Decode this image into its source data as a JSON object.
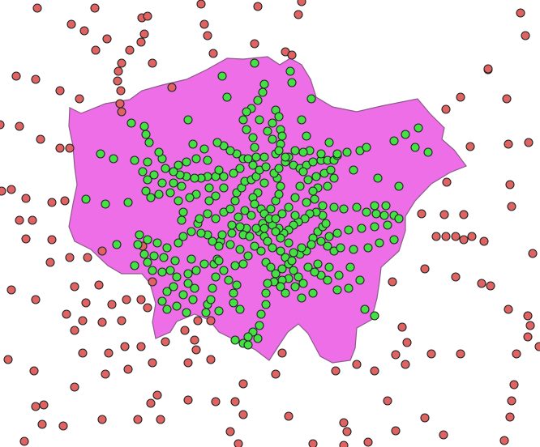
{
  "map": {
    "background_color": "#ffffff",
    "region": {
      "name": "",
      "fill_color": "#ee6ee8",
      "stroke_color": "#8a5a88"
    },
    "layers": [
      {
        "id": "points-inside",
        "fill_color": "#44e044"
      },
      {
        "id": "points-outside",
        "fill_color": "#e06363"
      }
    ]
  }
}
